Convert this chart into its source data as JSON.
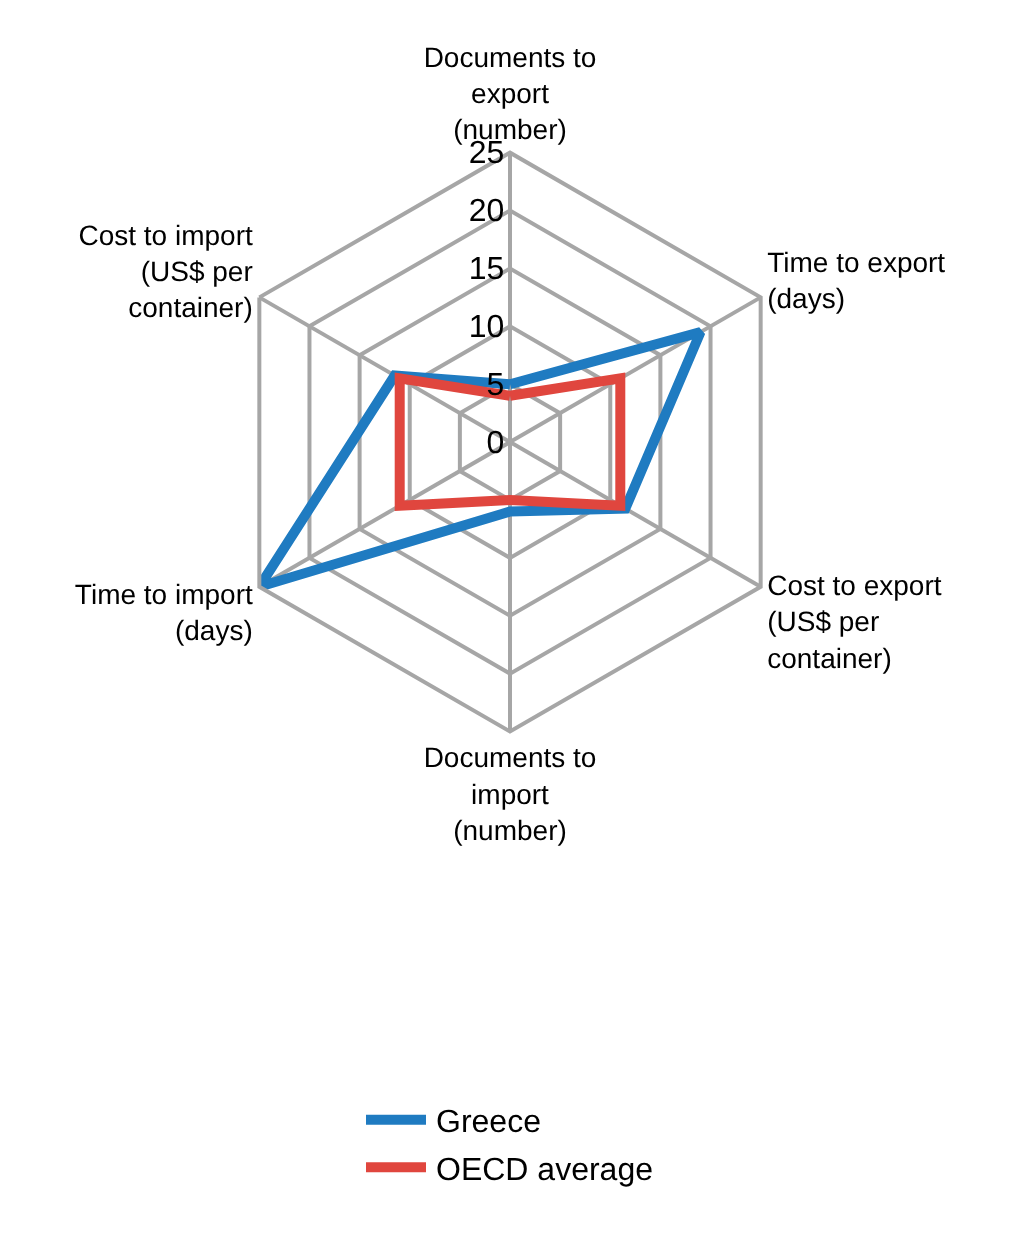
{
  "chart_data": {
    "type": "radar",
    "categories": [
      "Documents to export (number)",
      "Time to export (days)",
      "Cost to export (US$ per container)",
      "Documents to import (number)",
      "Time to import (days)",
      "Cost to import (US$ per container)"
    ],
    "series": [
      {
        "name": "Greece",
        "color": "#1f7bc1",
        "values": [
          5,
          19,
          11.5,
          6,
          25,
          11.5
        ]
      },
      {
        "name": "OECD average",
        "color": "#e0463e",
        "values": [
          4,
          11,
          11,
          5,
          11,
          11
        ]
      }
    ],
    "ylim": [
      0,
      25
    ],
    "yticks": [
      0,
      5,
      10,
      15,
      20,
      25
    ],
    "grid": true,
    "legend": "bottom",
    "marker": "none",
    "line_style": "solid"
  }
}
